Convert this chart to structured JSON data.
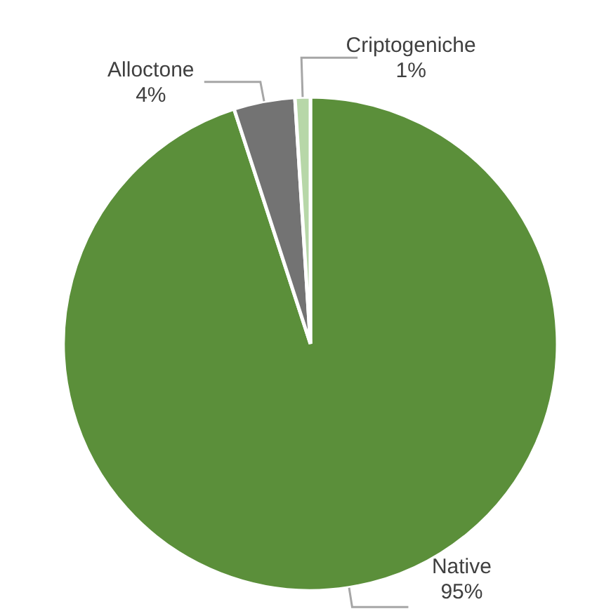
{
  "chart_data": {
    "type": "pie",
    "categories": [
      "Native",
      "Alloctone",
      "Criptogeniche"
    ],
    "values": [
      95,
      4,
      1
    ],
    "colors": [
      "#5b8f3a",
      "#737373",
      "#b7d7a8"
    ],
    "value_labels": [
      "95%",
      "4%",
      "1%"
    ]
  }
}
